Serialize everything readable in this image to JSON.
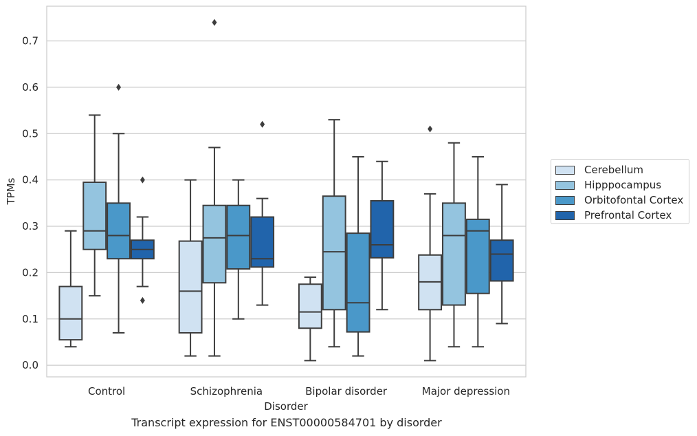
{
  "chart_data": {
    "type": "box",
    "caption": "Transcript expression for ENST00000584701 by disorder",
    "xlabel": "Disorder",
    "ylabel": "TPMs",
    "ylim": [
      -0.025,
      0.775
    ],
    "yticks": [
      "0.0",
      "0.1",
      "0.2",
      "0.3",
      "0.4",
      "0.5",
      "0.6",
      "0.7"
    ],
    "grid": "horizontal",
    "legend_position": "right",
    "categories": [
      "Control",
      "Schizophrenia",
      "Bipolar disorder",
      "Major depression"
    ],
    "series": [
      {
        "name": "Cerebellum",
        "color": "#d0e2f2",
        "boxes": [
          {
            "whisker_low": 0.04,
            "q1": 0.055,
            "median": 0.1,
            "q3": 0.17,
            "whisker_high": 0.29,
            "outliers": []
          },
          {
            "whisker_low": 0.02,
            "q1": 0.07,
            "median": 0.16,
            "q3": 0.268,
            "whisker_high": 0.4,
            "outliers": []
          },
          {
            "whisker_low": 0.01,
            "q1": 0.08,
            "median": 0.115,
            "q3": 0.175,
            "whisker_high": 0.19,
            "outliers": []
          },
          {
            "whisker_low": 0.01,
            "q1": 0.12,
            "median": 0.18,
            "q3": 0.238,
            "whisker_high": 0.37,
            "outliers": [
              0.51
            ]
          }
        ]
      },
      {
        "name": "Hipppocampus",
        "color": "#94c4df",
        "boxes": [
          {
            "whisker_low": 0.15,
            "q1": 0.25,
            "median": 0.29,
            "q3": 0.395,
            "whisker_high": 0.54,
            "outliers": []
          },
          {
            "whisker_low": 0.02,
            "q1": 0.178,
            "median": 0.275,
            "q3": 0.345,
            "whisker_high": 0.47,
            "outliers": [
              0.74
            ]
          },
          {
            "whisker_low": 0.04,
            "q1": 0.12,
            "median": 0.245,
            "q3": 0.365,
            "whisker_high": 0.53,
            "outliers": []
          },
          {
            "whisker_low": 0.04,
            "q1": 0.13,
            "median": 0.28,
            "q3": 0.35,
            "whisker_high": 0.48,
            "outliers": []
          }
        ]
      },
      {
        "name": "Orbitofontal Cortex",
        "color": "#4a98c9",
        "boxes": [
          {
            "whisker_low": 0.07,
            "q1": 0.23,
            "median": 0.28,
            "q3": 0.35,
            "whisker_high": 0.5,
            "outliers": [
              0.6
            ]
          },
          {
            "whisker_low": 0.1,
            "q1": 0.208,
            "median": 0.28,
            "q3": 0.345,
            "whisker_high": 0.4,
            "outliers": []
          },
          {
            "whisker_low": 0.02,
            "q1": 0.072,
            "median": 0.135,
            "q3": 0.285,
            "whisker_high": 0.45,
            "outliers": []
          },
          {
            "whisker_low": 0.04,
            "q1": 0.155,
            "median": 0.29,
            "q3": 0.315,
            "whisker_high": 0.45,
            "outliers": []
          }
        ]
      },
      {
        "name": "Prefrontal Cortex",
        "color": "#2164ab",
        "boxes": [
          {
            "whisker_low": 0.17,
            "q1": 0.23,
            "median": 0.25,
            "q3": 0.27,
            "whisker_high": 0.32,
            "outliers": [
              0.14,
              0.4
            ]
          },
          {
            "whisker_low": 0.13,
            "q1": 0.212,
            "median": 0.23,
            "q3": 0.32,
            "whisker_high": 0.36,
            "outliers": [
              0.52
            ]
          },
          {
            "whisker_low": 0.12,
            "q1": 0.232,
            "median": 0.26,
            "q3": 0.355,
            "whisker_high": 0.44,
            "outliers": []
          },
          {
            "whisker_low": 0.09,
            "q1": 0.182,
            "median": 0.24,
            "q3": 0.27,
            "whisker_high": 0.39,
            "outliers": []
          }
        ]
      }
    ]
  }
}
